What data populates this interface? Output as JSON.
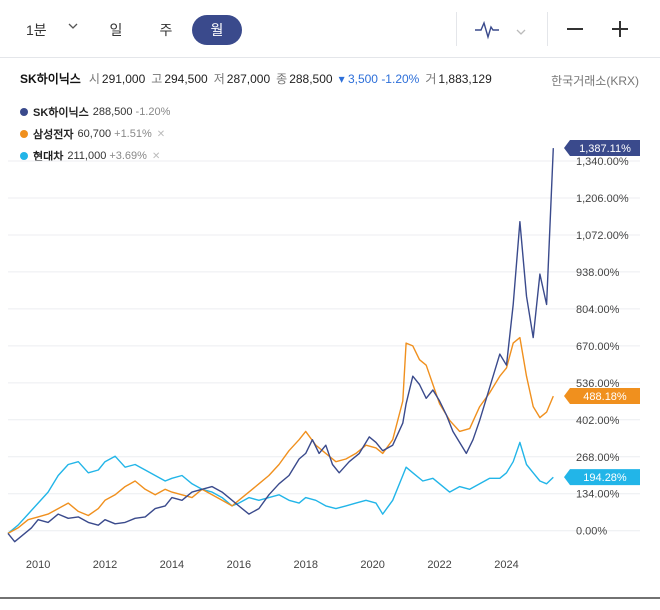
{
  "toolbar": {
    "period_select": "1분",
    "tabs": [
      "일",
      "주",
      "월"
    ],
    "active_tab": "월",
    "zoom_out": "−",
    "zoom_in": "+"
  },
  "quote": {
    "name": "SK하이닉스",
    "open_label": "시",
    "open": "291,000",
    "high_label": "고",
    "high": "294,500",
    "low_label": "저",
    "low": "287,000",
    "close_label": "종",
    "close": "288,500",
    "change": "▾ 3,500 -1.20%",
    "volume_label": "거",
    "volume": "1,883,129",
    "exchange": "한국거래소(KRX)"
  },
  "legend": [
    {
      "name": "SK하이닉스",
      "price": "288,500",
      "change": "-1.20%",
      "color": "#3a4a8c",
      "removable": false
    },
    {
      "name": "삼성전자",
      "price": "60,700",
      "change": "+1.51%",
      "color": "#f0901e",
      "removable": true
    },
    {
      "name": "현대차",
      "price": "211,000",
      "change": "+3.69%",
      "color": "#22b5e8",
      "removable": true
    }
  ],
  "chart_data": {
    "type": "line",
    "title": "",
    "xlabel": "",
    "ylabel": "",
    "x_ticks": [
      "2010",
      "2012",
      "2014",
      "2016",
      "2018",
      "2020",
      "2022",
      "2024"
    ],
    "y_ticks": [
      "0.00%",
      "134.00%",
      "268.00%",
      "402.00%",
      "536.00%",
      "670.00%",
      "804.00%",
      "938.00%",
      "1,072.00%",
      "1,206.00%",
      "1,340.00%"
    ],
    "y_tick_values": [
      0,
      134,
      268,
      402,
      536,
      670,
      804,
      938,
      1072,
      1206,
      1340
    ],
    "ylim": [
      -70,
      1380
    ],
    "xlim": [
      2009.1,
      2025.6
    ],
    "series": [
      {
        "name": "SK하이닉스",
        "color": "#3a4a8c",
        "end_label": "1,387.11%",
        "end_value": 1387.11,
        "points": [
          [
            2009.1,
            -10
          ],
          [
            2009.3,
            -40
          ],
          [
            2009.5,
            -20
          ],
          [
            2009.8,
            10
          ],
          [
            2010.0,
            40
          ],
          [
            2010.3,
            30
          ],
          [
            2010.6,
            60
          ],
          [
            2010.9,
            45
          ],
          [
            2011.2,
            50
          ],
          [
            2011.5,
            30
          ],
          [
            2011.8,
            20
          ],
          [
            2012.0,
            40
          ],
          [
            2012.3,
            25
          ],
          [
            2012.6,
            30
          ],
          [
            2012.9,
            45
          ],
          [
            2013.2,
            50
          ],
          [
            2013.5,
            80
          ],
          [
            2013.8,
            90
          ],
          [
            2014.0,
            120
          ],
          [
            2014.3,
            110
          ],
          [
            2014.6,
            140
          ],
          [
            2014.9,
            150
          ],
          [
            2015.2,
            160
          ],
          [
            2015.5,
            140
          ],
          [
            2015.8,
            110
          ],
          [
            2016.0,
            90
          ],
          [
            2016.3,
            60
          ],
          [
            2016.6,
            80
          ],
          [
            2016.9,
            130
          ],
          [
            2017.2,
            170
          ],
          [
            2017.5,
            200
          ],
          [
            2017.8,
            260
          ],
          [
            2018.0,
            280
          ],
          [
            2018.2,
            330
          ],
          [
            2018.4,
            280
          ],
          [
            2018.6,
            310
          ],
          [
            2018.8,
            240
          ],
          [
            2019.0,
            210
          ],
          [
            2019.3,
            250
          ],
          [
            2019.6,
            280
          ],
          [
            2019.9,
            340
          ],
          [
            2020.1,
            320
          ],
          [
            2020.3,
            290
          ],
          [
            2020.6,
            310
          ],
          [
            2020.9,
            390
          ],
          [
            2021.0,
            460
          ],
          [
            2021.2,
            560
          ],
          [
            2021.4,
            530
          ],
          [
            2021.6,
            480
          ],
          [
            2021.8,
            510
          ],
          [
            2022.0,
            470
          ],
          [
            2022.2,
            420
          ],
          [
            2022.4,
            360
          ],
          [
            2022.6,
            320
          ],
          [
            2022.8,
            280
          ],
          [
            2023.0,
            330
          ],
          [
            2023.2,
            400
          ],
          [
            2023.4,
            480
          ],
          [
            2023.6,
            560
          ],
          [
            2023.8,
            640
          ],
          [
            2024.0,
            600
          ],
          [
            2024.2,
            820
          ],
          [
            2024.4,
            1120
          ],
          [
            2024.6,
            850
          ],
          [
            2024.8,
            700
          ],
          [
            2025.0,
            930
          ],
          [
            2025.2,
            820
          ],
          [
            2025.4,
            1387
          ]
        ]
      },
      {
        "name": "삼성전자",
        "color": "#f0901e",
        "end_label": "488.18%",
        "end_value": 488.18,
        "points": [
          [
            2009.1,
            -10
          ],
          [
            2009.4,
            10
          ],
          [
            2009.7,
            40
          ],
          [
            2010.0,
            50
          ],
          [
            2010.3,
            60
          ],
          [
            2010.6,
            80
          ],
          [
            2010.9,
            100
          ],
          [
            2011.2,
            70
          ],
          [
            2011.5,
            55
          ],
          [
            2011.8,
            80
          ],
          [
            2012.0,
            110
          ],
          [
            2012.3,
            130
          ],
          [
            2012.6,
            160
          ],
          [
            2012.9,
            180
          ],
          [
            2013.2,
            150
          ],
          [
            2013.5,
            130
          ],
          [
            2013.8,
            150
          ],
          [
            2014.0,
            140
          ],
          [
            2014.3,
            130
          ],
          [
            2014.6,
            120
          ],
          [
            2014.9,
            150
          ],
          [
            2015.2,
            130
          ],
          [
            2015.5,
            110
          ],
          [
            2015.8,
            90
          ],
          [
            2016.0,
            110
          ],
          [
            2016.3,
            140
          ],
          [
            2016.6,
            170
          ],
          [
            2016.9,
            200
          ],
          [
            2017.2,
            240
          ],
          [
            2017.5,
            290
          ],
          [
            2017.8,
            330
          ],
          [
            2018.0,
            360
          ],
          [
            2018.3,
            310
          ],
          [
            2018.6,
            280
          ],
          [
            2018.9,
            250
          ],
          [
            2019.2,
            260
          ],
          [
            2019.5,
            280
          ],
          [
            2019.8,
            310
          ],
          [
            2020.1,
            300
          ],
          [
            2020.3,
            280
          ],
          [
            2020.6,
            330
          ],
          [
            2020.9,
            470
          ],
          [
            2021.0,
            680
          ],
          [
            2021.2,
            670
          ],
          [
            2021.4,
            620
          ],
          [
            2021.6,
            600
          ],
          [
            2021.8,
            530
          ],
          [
            2022.0,
            460
          ],
          [
            2022.3,
            400
          ],
          [
            2022.6,
            360
          ],
          [
            2022.9,
            370
          ],
          [
            2023.2,
            450
          ],
          [
            2023.5,
            500
          ],
          [
            2023.8,
            560
          ],
          [
            2024.0,
            590
          ],
          [
            2024.2,
            680
          ],
          [
            2024.4,
            700
          ],
          [
            2024.6,
            560
          ],
          [
            2024.8,
            450
          ],
          [
            2025.0,
            410
          ],
          [
            2025.2,
            430
          ],
          [
            2025.4,
            488
          ]
        ]
      },
      {
        "name": "현대차",
        "color": "#22b5e8",
        "end_label": "194.28%",
        "end_value": 194.28,
        "points": [
          [
            2009.1,
            -10
          ],
          [
            2009.4,
            20
          ],
          [
            2009.7,
            60
          ],
          [
            2010.0,
            100
          ],
          [
            2010.3,
            140
          ],
          [
            2010.6,
            200
          ],
          [
            2010.9,
            240
          ],
          [
            2011.2,
            250
          ],
          [
            2011.5,
            210
          ],
          [
            2011.8,
            220
          ],
          [
            2012.0,
            250
          ],
          [
            2012.3,
            270
          ],
          [
            2012.6,
            230
          ],
          [
            2012.9,
            240
          ],
          [
            2013.2,
            220
          ],
          [
            2013.5,
            200
          ],
          [
            2013.8,
            180
          ],
          [
            2014.0,
            190
          ],
          [
            2014.3,
            200
          ],
          [
            2014.6,
            170
          ],
          [
            2014.9,
            150
          ],
          [
            2015.2,
            140
          ],
          [
            2015.5,
            120
          ],
          [
            2015.8,
            90
          ],
          [
            2016.0,
            100
          ],
          [
            2016.3,
            120
          ],
          [
            2016.6,
            110
          ],
          [
            2016.9,
            120
          ],
          [
            2017.2,
            130
          ],
          [
            2017.5,
            110
          ],
          [
            2017.8,
            100
          ],
          [
            2018.0,
            120
          ],
          [
            2018.3,
            110
          ],
          [
            2018.6,
            90
          ],
          [
            2018.9,
            80
          ],
          [
            2019.2,
            90
          ],
          [
            2019.5,
            100
          ],
          [
            2019.8,
            110
          ],
          [
            2020.1,
            100
          ],
          [
            2020.3,
            60
          ],
          [
            2020.6,
            110
          ],
          [
            2020.9,
            200
          ],
          [
            2021.0,
            230
          ],
          [
            2021.2,
            210
          ],
          [
            2021.5,
            180
          ],
          [
            2021.8,
            190
          ],
          [
            2022.0,
            170
          ],
          [
            2022.3,
            140
          ],
          [
            2022.6,
            160
          ],
          [
            2022.9,
            150
          ],
          [
            2023.2,
            170
          ],
          [
            2023.5,
            190
          ],
          [
            2023.8,
            190
          ],
          [
            2024.0,
            210
          ],
          [
            2024.2,
            250
          ],
          [
            2024.4,
            320
          ],
          [
            2024.6,
            240
          ],
          [
            2024.8,
            210
          ],
          [
            2025.0,
            180
          ],
          [
            2025.2,
            170
          ],
          [
            2025.4,
            194
          ]
        ]
      }
    ]
  }
}
